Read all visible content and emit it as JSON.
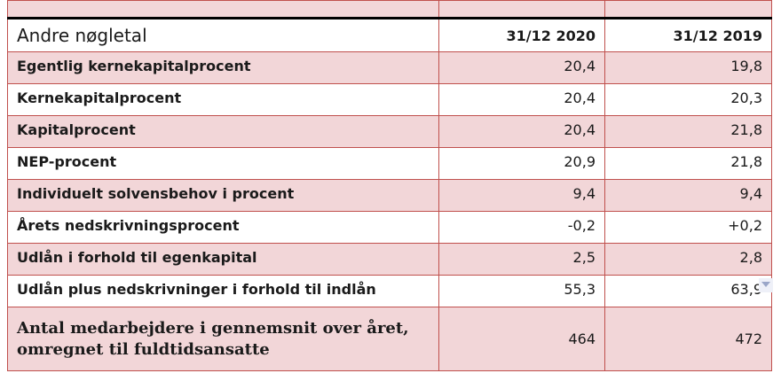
{
  "header": {
    "title": "Andre nøgletal",
    "col1": "31/12 2020",
    "col2": "31/12 2019"
  },
  "rows": [
    {
      "label": "Egentlig kernekapitalprocent",
      "v2020": "20,4",
      "v2019": "19,8"
    },
    {
      "label": "Kernekapitalprocent",
      "v2020": "20,4",
      "v2019": "20,3"
    },
    {
      "label": "Kapitalprocent",
      "v2020": "20,4",
      "v2019": "21,8"
    },
    {
      "label": "NEP-procent",
      "v2020": "20,9",
      "v2019": "21,8"
    },
    {
      "label": "Individuelt solvensbehov i procent",
      "v2020": "9,4",
      "v2019": "9,4"
    },
    {
      "label": "Årets nedskrivningsprocent",
      "v2020": "-0,2",
      "v2019": "+0,2"
    },
    {
      "label": "Udlån i forhold til egenkapital",
      "v2020": "2,5",
      "v2019": "2,8"
    },
    {
      "label": "Udlån plus nedskrivninger i forhold til indlån",
      "v2020": "55,3",
      "v2019": "63,9"
    },
    {
      "label_line1": "Antal medarbejdere i gennemsnit over året,",
      "label_line2": "omregnet til fuldtidsansatte",
      "v2020": "464",
      "v2019": "472"
    }
  ],
  "colors": {
    "row_shade": "#f2d6d8",
    "border": "#c0504d"
  }
}
